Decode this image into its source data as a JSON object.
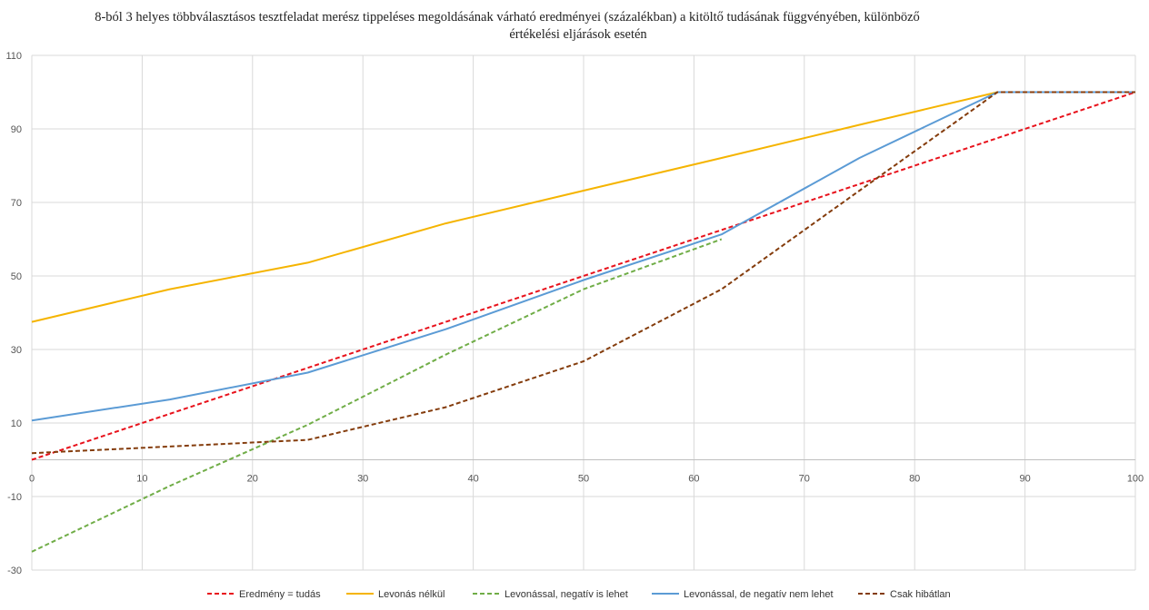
{
  "chart_data": {
    "type": "line",
    "title_lines": [
      "8-ból 3 helyes többválasztásos tesztfeladat merész tippeléses  megoldásának várható eredményei (százalékban) a kitöltő tudásának függvényében, különböző",
      "értékelési eljárások esetén"
    ],
    "xlabel": "",
    "ylabel": "",
    "xlim": [
      0,
      100
    ],
    "ylim": [
      -30,
      110
    ],
    "x_ticks": [
      0,
      10,
      20,
      30,
      40,
      50,
      60,
      70,
      80,
      90,
      100
    ],
    "y_ticks": [
      110,
      90,
      70,
      50,
      30,
      10,
      -10,
      -30
    ],
    "grid": true,
    "legend_position": "bottom",
    "series": [
      {
        "name": "Eredmény = tudás",
        "color": "#e8121c",
        "dash": "dashed",
        "x": [
          0,
          100
        ],
        "y": [
          0,
          100
        ]
      },
      {
        "name": "Levonás nélkül",
        "color": "#f5b400",
        "dash": "solid",
        "x": [
          0,
          12.5,
          25,
          37.5,
          50,
          62.5,
          75,
          87.5,
          100
        ],
        "y": [
          37.5,
          46.4,
          53.6,
          64.3,
          73.2,
          82.1,
          91.1,
          100,
          100
        ]
      },
      {
        "name": "Levonással, negatív is lehet",
        "color": "#70ad47",
        "dash": "dashed",
        "x": [
          0,
          12.5,
          25,
          37.5,
          50,
          62.5
        ],
        "y": [
          -25,
          -7.1,
          9.5,
          28.6,
          46.4,
          60
        ]
      },
      {
        "name": "Levonással, de negatív nem lehet",
        "color": "#5b9bd5",
        "dash": "solid",
        "x": [
          0,
          12.5,
          25,
          37.5,
          50,
          62.5,
          75,
          87.5,
          100
        ],
        "y": [
          10.7,
          16.4,
          23.7,
          35.5,
          48.9,
          61.3,
          82.1,
          100,
          100
        ]
      },
      {
        "name": "Csak hibátlan",
        "color": "#843c0c",
        "dash": "dashed",
        "x": [
          0,
          12.5,
          25,
          37.5,
          50,
          62.5,
          75,
          87.5,
          100
        ],
        "y": [
          1.8,
          3.6,
          5.4,
          14.3,
          26.8,
          46.4,
          73.2,
          100,
          100
        ]
      }
    ]
  }
}
